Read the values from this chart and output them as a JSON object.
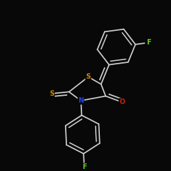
{
  "background_color": "#080808",
  "bond_color": "#cccccc",
  "atom_colors": {
    "S": "#cc8800",
    "N": "#2244ee",
    "O": "#cc2200",
    "F": "#66cc22",
    "C": "#cccccc"
  },
  "bond_width": 1.3,
  "figsize": [
    2.5,
    2.5
  ],
  "dpi": 100
}
